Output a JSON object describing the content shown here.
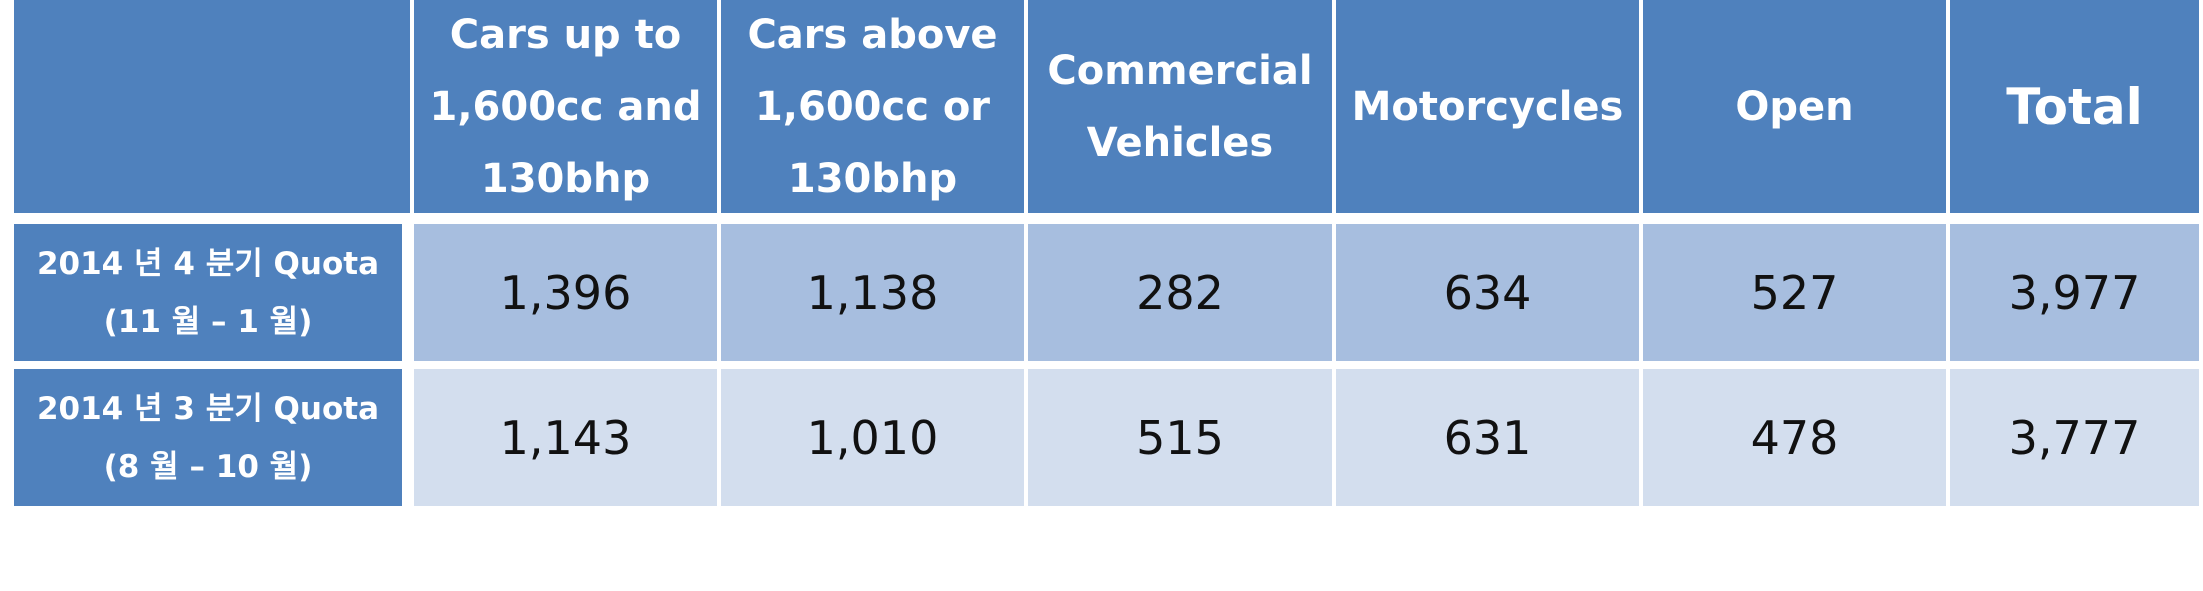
{
  "chart_data": {
    "type": "table",
    "columns": [
      "",
      "Cars up to\n1,600cc and\n130bhp",
      "Cars above\n1,600cc or\n130bhp",
      "Commercial\nVehicles",
      "Motorcycles",
      "Open",
      "Total"
    ],
    "rows": [
      {
        "label": "2014 년 4 분기 Quota\n(11 월 – 1 월)",
        "values": [
          "1,396",
          "1,138",
          "282",
          "634",
          "527",
          "3,977"
        ]
      },
      {
        "label": "2014 년 3 분기 Quota\n(8 월 – 10 월)",
        "values": [
          "1,143",
          "1,010",
          "515",
          "631",
          "478",
          "3,777"
        ]
      }
    ],
    "colors": {
      "header": "#4f81bd",
      "row_odd": "#a7bedf",
      "row_even": "#d3deee"
    }
  }
}
